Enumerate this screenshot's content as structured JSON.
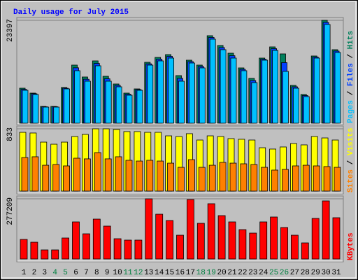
{
  "chart_data": [
    {
      "type": "bar",
      "title": "Daily usage for July 2015",
      "ylim": [
        0,
        23397
      ],
      "yticks": [
        23397
      ],
      "legend_separator": "/",
      "series": [
        {
          "name": "Hits",
          "color": "#00805c",
          "values": [
            7960,
            6845,
            3821,
            3821,
            8119,
            13213,
            10507,
            14168,
            10666,
            8915,
            6845,
            7800,
            13850,
            14964,
            15600,
            10825,
            14327,
            13213,
            19898,
            17670,
            15918,
            12575,
            10188,
            14804,
            17351,
            15759,
            8596,
            6527,
            15282,
            23397,
            16714
          ]
        },
        {
          "name": "Files",
          "color": "#0040ff",
          "values": [
            7700,
            6700,
            3740,
            3740,
            7960,
            12600,
            10000,
            13600,
            10100,
            8600,
            6600,
            7640,
            13500,
            14560,
            15200,
            10200,
            14000,
            12900,
            19500,
            17200,
            15350,
            12250,
            9700,
            14560,
            16950,
            13770,
            8280,
            6290,
            15040,
            22920,
            16400
          ]
        },
        {
          "name": "Pages",
          "color": "#00c0ff",
          "values": [
            7482,
            6527,
            3662,
            3662,
            7801,
            11940,
            9552,
            13054,
            9552,
            8278,
            6368,
            7482,
            13214,
            14169,
            14806,
            9552,
            13691,
            12577,
            19104,
            16716,
            14806,
            11940,
            9234,
            14328,
            16557,
            11781,
            7960,
            6050,
            14806,
            22447,
            16079
          ]
        }
      ]
    },
    {
      "type": "bar",
      "ylim": [
        0,
        833
      ],
      "yticks": [
        833
      ],
      "legend_separator": "/",
      "series": [
        {
          "name": "Visits",
          "color": "#ffff00",
          "values": [
            786,
            777,
            655,
            627,
            655,
            730,
            758,
            833,
            833,
            824,
            796,
            796,
            786,
            786,
            739,
            730,
            768,
            683,
            739,
            730,
            702,
            693,
            683,
            580,
            562,
            590,
            636,
            618,
            730,
            711,
            683
          ]
        },
        {
          "name": "Sites",
          "color": "#ff8000",
          "values": [
            449,
            459,
            346,
            356,
            337,
            440,
            431,
            515,
            431,
            459,
            412,
            402,
            412,
            402,
            374,
            318,
            421,
            318,
            346,
            384,
            374,
            365,
            356,
            318,
            281,
            290,
            337,
            346,
            337,
            328,
            318
          ]
        }
      ]
    },
    {
      "type": "bar",
      "ylim": [
        0,
        277209
      ],
      "yticks": [
        277209
      ],
      "categories": [
        "1",
        "2",
        "3",
        "4",
        "5",
        "6",
        "7",
        "8",
        "9",
        "10",
        "11",
        "12",
        "13",
        "14",
        "15",
        "16",
        "17",
        "18",
        "19",
        "20",
        "21",
        "22",
        "23",
        "24",
        "25",
        "26",
        "27",
        "28",
        "29",
        "30",
        "31"
      ],
      "label_colors": [
        "#000000",
        "#000000",
        "#000000",
        "#008040",
        "#008040",
        "#000000",
        "#000000",
        "#000000",
        "#000000",
        "#000000",
        "#008040",
        "#008040",
        "#000000",
        "#000000",
        "#000000",
        "#000000",
        "#000000",
        "#008040",
        "#008040",
        "#000000",
        "#000000",
        "#000000",
        "#000000",
        "#000000",
        "#008040",
        "#008040",
        "#000000",
        "#000000",
        "#000000",
        "#000000",
        "#000000"
      ],
      "series": [
        {
          "name": "KBytes",
          "color": "#ff0000",
          "values": [
            90244,
            77352,
            41899,
            41899,
            96690,
            170819,
            116028,
            183711,
            151481,
            93467,
            87021,
            87021,
            277209,
            206272,
            177265,
            109582,
            273955,
            164373,
            254617,
            199826,
            170819,
            135366,
            119251,
            170819,
            193380,
            145035,
            109582,
            74129,
            186934,
            267509,
            190157
          ]
        }
      ]
    }
  ]
}
